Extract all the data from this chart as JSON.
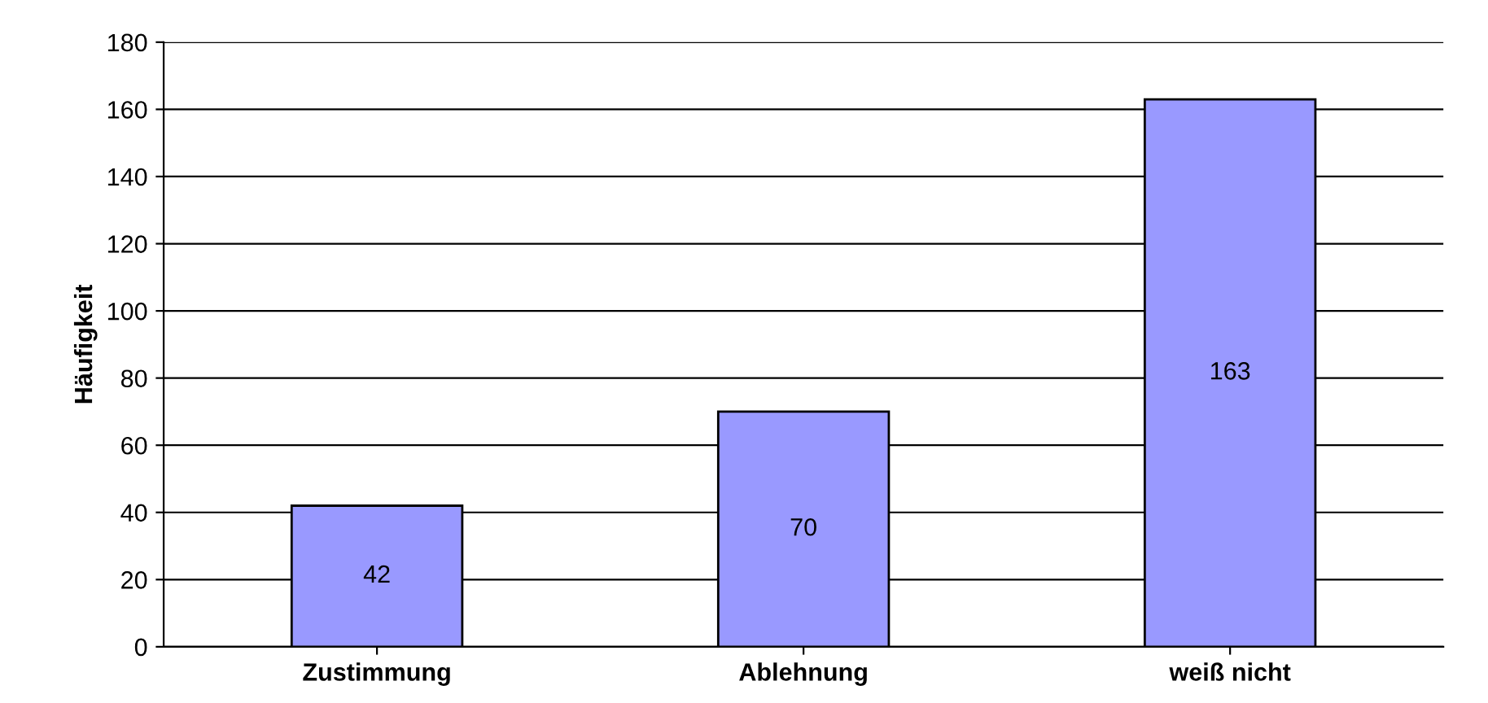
{
  "chart_data": {
    "type": "bar",
    "ylabel": "Häufigkeit",
    "categories": [
      "Zustimmung",
      "Ablehnung",
      "weiß nicht"
    ],
    "values": [
      42,
      70,
      163
    ],
    "color": "#9999ff",
    "ylim": [
      0,
      180
    ],
    "yticks": [
      0,
      20,
      40,
      60,
      80,
      100,
      120,
      140,
      160,
      180
    ],
    "grid": "y",
    "data_labels": true
  }
}
